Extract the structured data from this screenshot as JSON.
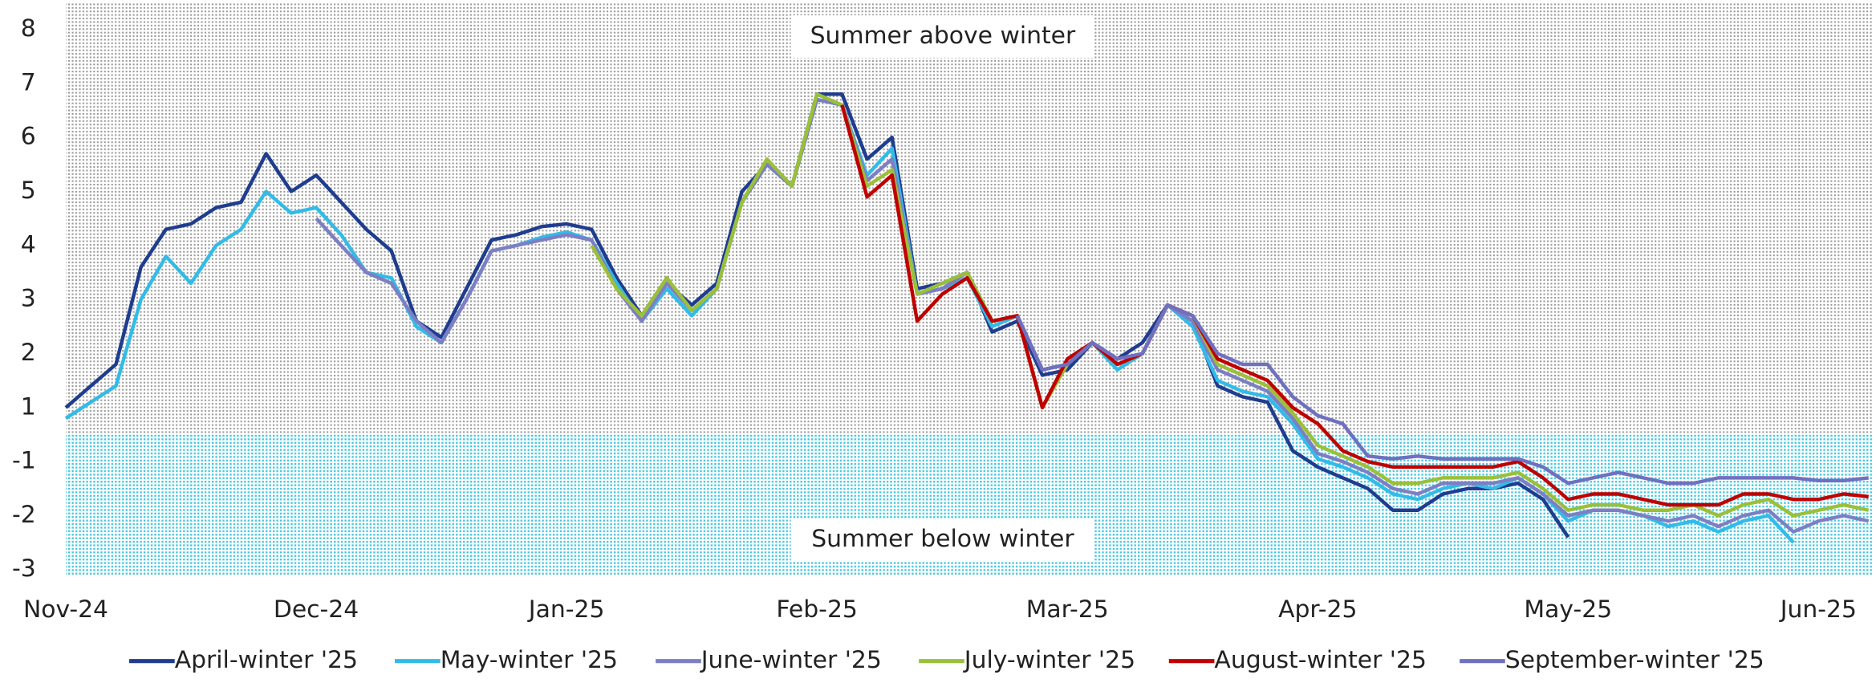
{
  "chart_data": {
    "type": "line",
    "annotations": [
      "Summer above winter",
      "Summer below winter"
    ],
    "categories": [
      "Nov-24",
      null,
      null,
      null,
      null,
      null,
      null,
      null,
      null,
      null,
      "Dec-24",
      null,
      null,
      null,
      null,
      null,
      null,
      null,
      null,
      null,
      "Jan-25",
      null,
      null,
      null,
      null,
      null,
      null,
      null,
      null,
      null,
      "Feb-25",
      null,
      null,
      null,
      null,
      null,
      null,
      null,
      null,
      null,
      "Mar-25",
      null,
      null,
      null,
      null,
      null,
      null,
      null,
      null,
      null,
      "Apr-25",
      null,
      null,
      null,
      null,
      null,
      null,
      null,
      null,
      null,
      "May-25",
      null,
      null,
      null,
      null,
      null,
      null,
      null,
      null,
      null,
      "Jun-25",
      null,
      null
    ],
    "ylim": [
      -3.1,
      8.5
    ],
    "yticks": [
      8,
      7,
      6,
      5,
      4,
      3,
      2,
      1,
      -1,
      -2,
      -3
    ],
    "y_break": [
      -1,
      1
    ],
    "shade_split": 0,
    "shade_colors": [
      "#9a9a9a",
      "#46c6e0"
    ],
    "legend": "bottom",
    "series": [
      {
        "name": "April-winter '25",
        "color": "#1f3d8f",
        "values": [
          1.0,
          1.4,
          1.8,
          3.6,
          4.3,
          4.4,
          4.7,
          4.8,
          5.7,
          5.0,
          5.3,
          4.8,
          4.3,
          3.9,
          2.6,
          2.3,
          3.2,
          4.1,
          4.2,
          4.35,
          4.4,
          4.3,
          3.4,
          2.7,
          3.3,
          2.9,
          3.3,
          5.0,
          5.5,
          5.1,
          6.8,
          6.8,
          5.6,
          6.0,
          3.2,
          3.3,
          3.5,
          2.4,
          2.6,
          1.6,
          1.7,
          2.2,
          1.9,
          2.2,
          2.9,
          2.6,
          1.4,
          1.2,
          1.1,
          -0.6,
          -1.1,
          -1.3,
          -1.5,
          -1.9,
          -1.9,
          -1.6,
          -1.5,
          -1.5,
          -1.4,
          -1.7,
          -2.4,
          null,
          null,
          null,
          null,
          null,
          null,
          null,
          null,
          null,
          null,
          null,
          null
        ]
      },
      {
        "name": "May-winter '25",
        "color": "#33bbe8",
        "values": [
          0.6,
          1.1,
          1.4,
          3.0,
          3.8,
          3.3,
          4.0,
          4.3,
          5.0,
          4.6,
          4.7,
          4.2,
          3.5,
          3.4,
          2.5,
          2.2,
          3.0,
          3.9,
          4.0,
          4.15,
          4.25,
          4.1,
          3.3,
          2.6,
          3.2,
          2.7,
          3.2,
          4.8,
          5.5,
          5.1,
          6.7,
          6.6,
          5.3,
          5.8,
          3.1,
          3.2,
          3.4,
          2.5,
          2.7,
          1.7,
          1.8,
          2.2,
          1.7,
          2.0,
          2.9,
          2.5,
          1.5,
          1.3,
          1.2,
          0.4,
          -0.9,
          -1.1,
          -1.3,
          -1.6,
          -1.7,
          -1.5,
          -1.4,
          -1.5,
          -1.3,
          -1.6,
          -2.1,
          -1.9,
          -1.9,
          -2.0,
          -2.2,
          -2.1,
          -2.3,
          -2.1,
          -2.0,
          -2.5,
          null,
          null,
          null
        ]
      },
      {
        "name": "June-winter '25",
        "color": "#7d7fc4",
        "values": [
          null,
          null,
          null,
          null,
          null,
          null,
          null,
          null,
          null,
          null,
          4.5,
          4.0,
          3.5,
          3.3,
          2.6,
          2.2,
          3.0,
          3.9,
          4.0,
          4.1,
          4.2,
          4.1,
          3.2,
          2.6,
          3.3,
          2.8,
          3.2,
          4.8,
          5.5,
          5.1,
          6.7,
          6.6,
          5.2,
          5.6,
          3.1,
          3.2,
          3.5,
          2.6,
          2.7,
          1.7,
          1.8,
          2.2,
          1.8,
          2.0,
          2.9,
          2.6,
          1.7,
          1.5,
          1.3,
          0.6,
          -0.7,
          -1.0,
          -1.2,
          -1.5,
          -1.6,
          -1.4,
          -1.4,
          -1.4,
          -1.3,
          -1.6,
          -2.0,
          -1.9,
          -1.9,
          -2.0,
          -2.1,
          -2.0,
          -2.2,
          -2.0,
          -1.9,
          -2.3,
          -2.1,
          -2.0,
          -2.1
        ]
      },
      {
        "name": "July-winter '25",
        "color": "#9ac03a",
        "values": [
          null,
          null,
          null,
          null,
          null,
          null,
          null,
          null,
          null,
          null,
          null,
          null,
          null,
          null,
          null,
          null,
          null,
          null,
          null,
          null,
          null,
          4.0,
          3.2,
          2.7,
          3.4,
          2.8,
          3.2,
          4.8,
          5.6,
          5.1,
          6.8,
          6.6,
          5.1,
          5.4,
          3.1,
          3.3,
          3.5,
          2.6,
          2.7,
          1.0,
          1.8,
          2.2,
          1.8,
          2.0,
          2.9,
          2.7,
          1.8,
          1.6,
          1.4,
          0.8,
          -0.4,
          -0.8,
          -1.1,
          -1.4,
          -1.4,
          -1.3,
          -1.3,
          -1.3,
          -1.2,
          -1.5,
          -1.9,
          -1.8,
          -1.8,
          -1.9,
          -1.9,
          -1.8,
          -2.0,
          -1.8,
          -1.7,
          -2.0,
          -1.9,
          -1.8,
          -1.9
        ]
      },
      {
        "name": "August-winter '25",
        "color": "#c00000",
        "values": [
          null,
          null,
          null,
          null,
          null,
          null,
          null,
          null,
          null,
          null,
          null,
          null,
          null,
          null,
          null,
          null,
          null,
          null,
          null,
          null,
          null,
          null,
          null,
          null,
          null,
          null,
          null,
          null,
          null,
          null,
          null,
          6.6,
          4.9,
          5.3,
          2.6,
          3.1,
          3.4,
          2.6,
          2.7,
          1.0,
          1.9,
          2.2,
          1.8,
          2.0,
          2.9,
          2.7,
          1.9,
          1.7,
          1.5,
          1.0,
          0.4,
          -0.6,
          -1.0,
          -1.1,
          -1.1,
          -1.1,
          -1.1,
          -1.1,
          -1.0,
          -1.3,
          -1.7,
          -1.6,
          -1.6,
          -1.7,
          -1.8,
          -1.8,
          -1.8,
          -1.6,
          -1.6,
          -1.7,
          -1.7,
          -1.6,
          -1.65
        ]
      },
      {
        "name": "September-winter '25",
        "color": "#7070c0",
        "values": [
          null,
          null,
          null,
          null,
          null,
          null,
          null,
          null,
          null,
          null,
          null,
          null,
          null,
          null,
          null,
          null,
          null,
          null,
          null,
          null,
          null,
          null,
          null,
          null,
          null,
          null,
          null,
          null,
          null,
          null,
          null,
          null,
          null,
          null,
          null,
          null,
          null,
          null,
          2.7,
          1.7,
          1.8,
          2.2,
          1.9,
          2.0,
          2.9,
          2.7,
          2.0,
          1.8,
          1.8,
          1.2,
          0.7,
          0.4,
          -0.8,
          -0.9,
          -0.8,
          -0.9,
          -0.9,
          -0.9,
          -0.9,
          -1.1,
          -1.4,
          -1.3,
          -1.2,
          -1.3,
          -1.4,
          -1.4,
          -1.3,
          -1.3,
          -1.3,
          -1.3,
          -1.35,
          -1.35,
          -1.3
        ]
      }
    ]
  }
}
